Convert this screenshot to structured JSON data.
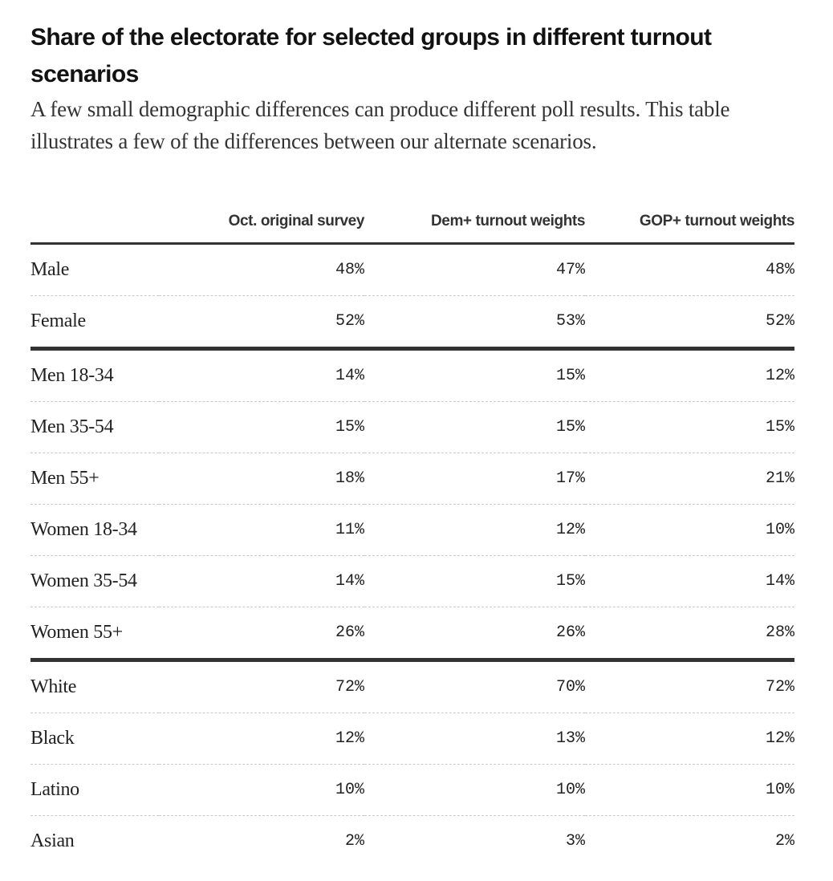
{
  "chart_data": {
    "type": "table",
    "title": "Share of the electorate for selected groups in different turnout scenarios",
    "subtitle": "A few small demographic differences can produce different poll results. This table illustrates a few of the differences between our alternate scenarios.",
    "columns": [
      "",
      "Oct. original survey",
      "Dem+ turnout weights",
      "GOP+ turnout weights"
    ],
    "rows": [
      {
        "label": "Male",
        "values": [
          "48%",
          "47%",
          "48%"
        ],
        "group_end": false
      },
      {
        "label": "Female",
        "values": [
          "52%",
          "53%",
          "52%"
        ],
        "group_end": true
      },
      {
        "label": "Men 18-34",
        "values": [
          "14%",
          "15%",
          "12%"
        ],
        "group_end": false
      },
      {
        "label": "Men 35-54",
        "values": [
          "15%",
          "15%",
          "15%"
        ],
        "group_end": false
      },
      {
        "label": "Men 55+",
        "values": [
          "18%",
          "17%",
          "21%"
        ],
        "group_end": false
      },
      {
        "label": "Women 18-34",
        "values": [
          "11%",
          "12%",
          "10%"
        ],
        "group_end": false
      },
      {
        "label": "Women 35-54",
        "values": [
          "14%",
          "15%",
          "14%"
        ],
        "group_end": false
      },
      {
        "label": "Women 55+",
        "values": [
          "26%",
          "26%",
          "28%"
        ],
        "group_end": true
      },
      {
        "label": "White",
        "values": [
          "72%",
          "70%",
          "72%"
        ],
        "group_end": false
      },
      {
        "label": "Black",
        "values": [
          "12%",
          "13%",
          "12%"
        ],
        "group_end": false
      },
      {
        "label": "Latino",
        "values": [
          "10%",
          "10%",
          "10%"
        ],
        "group_end": false
      },
      {
        "label": "Asian",
        "values": [
          "2%",
          "3%",
          "2%"
        ],
        "group_end": false
      }
    ]
  }
}
